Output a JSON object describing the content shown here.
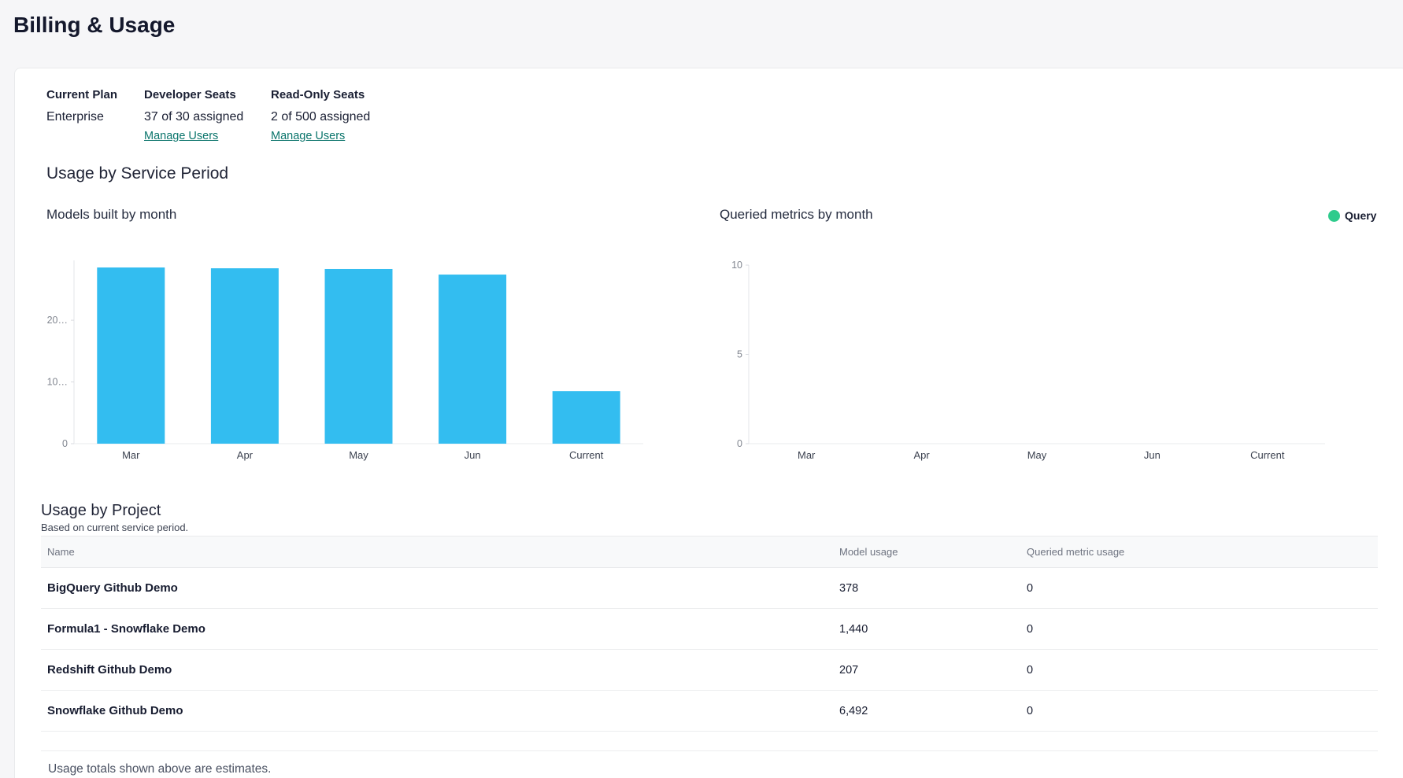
{
  "page": {
    "title": "Billing & Usage"
  },
  "plan": {
    "columns": [
      {
        "label": "Current Plan",
        "value": "Enterprise"
      },
      {
        "label": "Developer Seats",
        "value": "37 of 30 assigned",
        "link": "Manage Users"
      },
      {
        "label": "Read-Only Seats",
        "value": "2 of 500 assigned",
        "link": "Manage Users"
      }
    ]
  },
  "usage_section": {
    "title": "Usage by Service Period"
  },
  "chart_data": [
    {
      "type": "bar",
      "title": "Models built by month",
      "categories": [
        "Mar",
        "Apr",
        "May",
        "Jun",
        "Current"
      ],
      "series": [
        {
          "name": "Models built",
          "values": [
            28550,
            28420,
            28300,
            27400,
            8517
          ]
        }
      ],
      "ylim": [
        0,
        29700
      ],
      "y_ticks": [
        {
          "value": 0,
          "label": "0"
        },
        {
          "value": 10000,
          "label": "10…"
        },
        {
          "value": 20000,
          "label": "20…"
        }
      ],
      "bar_color": "#33bdf0",
      "grid": false,
      "legend": null
    },
    {
      "type": "bar",
      "title": "Queried metrics by month",
      "categories": [
        "Mar",
        "Apr",
        "May",
        "Jun",
        "Current"
      ],
      "series": [
        {
          "name": "Query",
          "values": [
            0,
            0,
            0,
            0,
            0
          ]
        }
      ],
      "ylim": [
        0,
        10
      ],
      "y_ticks": [
        {
          "value": 0,
          "label": "0"
        },
        {
          "value": 5,
          "label": "5"
        },
        {
          "value": 10,
          "label": "10"
        }
      ],
      "bar_color": "#2ecb8c",
      "grid": false,
      "legend": {
        "label": "Query",
        "color": "#2ecb8c",
        "position": "top-right"
      }
    }
  ],
  "project_section": {
    "title": "Usage by Project",
    "subtitle": "Based on current service period."
  },
  "table": {
    "headers": [
      "Name",
      "Model usage",
      "Queried metric usage"
    ],
    "rows": [
      {
        "name": "BigQuery Github Demo",
        "model_usage": "378",
        "queried_metric_usage": "0"
      },
      {
        "name": "Formula1 - Snowflake Demo",
        "model_usage": "1,440",
        "queried_metric_usage": "0"
      },
      {
        "name": "Redshift Github Demo",
        "model_usage": "207",
        "queried_metric_usage": "0"
      },
      {
        "name": "Snowflake Github Demo",
        "model_usage": "6,492",
        "queried_metric_usage": "0"
      }
    ]
  },
  "footer": {
    "note": "Usage totals shown above are estimates."
  },
  "colors": {
    "page_background": "#f6f6f8",
    "card_background": "#ffffff",
    "text_navy": "#161b2f",
    "muted_gray": "#6e7380",
    "link_teal": "#0b756c",
    "bar_blue": "#33bdf0",
    "legend_green": "#2ecb8c",
    "divider": "#e9eaec"
  }
}
